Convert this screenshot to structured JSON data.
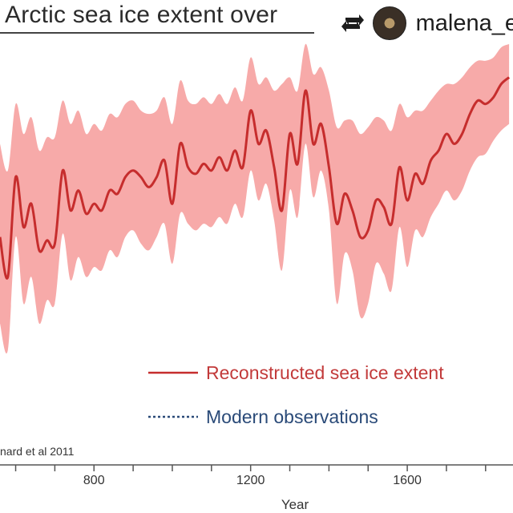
{
  "title": "Arctic sea ice extent over",
  "repost": {
    "icon": "repost-icon",
    "username": "malena_e"
  },
  "credit": "nard et al 2011",
  "colors": {
    "band": "#f7aaa9",
    "line": "#c62d2d",
    "observed": "#2a4a78",
    "text": "#333333"
  },
  "chart_data": {
    "type": "line",
    "title": "Arctic sea ice extent over",
    "xlabel": "Year",
    "ylabel": "",
    "x_ticks": [
      800,
      1200,
      1600
    ],
    "xlim": [
      560,
      1870
    ],
    "ylim": [
      0,
      10
    ],
    "grid": false,
    "legend_placement": "bottom-right",
    "series": [
      {
        "name": "Reconstructed sea ice extent",
        "style": "solid",
        "x": [
          560,
          580,
          600,
          620,
          640,
          660,
          680,
          700,
          720,
          740,
          760,
          780,
          800,
          820,
          840,
          860,
          880,
          900,
          920,
          940,
          960,
          980,
          1000,
          1020,
          1040,
          1060,
          1080,
          1100,
          1120,
          1140,
          1160,
          1180,
          1200,
          1220,
          1240,
          1260,
          1280,
          1300,
          1320,
          1340,
          1360,
          1380,
          1400,
          1420,
          1440,
          1460,
          1480,
          1500,
          1520,
          1540,
          1560,
          1580,
          1600,
          1620,
          1640,
          1660,
          1680,
          1700,
          1720,
          1740,
          1760,
          1780,
          1800,
          1820,
          1840,
          1860
        ],
        "values": [
          4.2,
          3.0,
          6.0,
          4.5,
          5.2,
          3.8,
          4.1,
          4.0,
          6.2,
          5.0,
          5.6,
          4.9,
          5.2,
          5.0,
          5.6,
          5.5,
          6.0,
          6.2,
          6.0,
          5.7,
          6.0,
          6.5,
          5.2,
          7.0,
          6.3,
          6.1,
          6.4,
          6.2,
          6.6,
          6.2,
          6.8,
          6.3,
          8.0,
          7.0,
          7.4,
          6.3,
          5.0,
          7.3,
          6.4,
          8.6,
          7.0,
          7.6,
          6.3,
          4.6,
          5.5,
          5.0,
          4.2,
          4.4,
          5.3,
          5.1,
          4.6,
          6.3,
          5.3,
          6.1,
          5.8,
          6.5,
          6.8,
          7.3,
          7.0,
          7.3,
          7.9,
          8.3,
          8.2,
          8.4,
          8.8,
          9.0
        ],
        "upper": [
          7.0,
          6.2,
          8.2,
          7.3,
          7.8,
          6.8,
          7.2,
          7.2,
          8.3,
          7.6,
          8.0,
          7.3,
          7.6,
          7.4,
          7.9,
          7.8,
          8.2,
          8.3,
          8.0,
          7.9,
          8.0,
          8.4,
          7.6,
          8.9,
          8.3,
          8.2,
          8.4,
          8.2,
          8.5,
          8.2,
          8.7,
          8.3,
          9.6,
          8.8,
          9.0,
          8.6,
          8.8,
          9.0,
          8.6,
          10.0,
          9.1,
          9.3,
          8.6,
          7.5,
          7.7,
          7.7,
          7.3,
          7.5,
          7.8,
          7.7,
          7.4,
          8.2,
          7.8,
          8.0,
          8.0,
          8.3,
          8.6,
          8.8,
          8.8,
          9.0,
          9.3,
          9.5,
          9.5,
          9.6,
          9.9,
          10.0
        ],
        "lower": [
          1.6,
          0.8,
          4.2,
          2.2,
          3.0,
          1.6,
          2.3,
          2.2,
          4.3,
          2.9,
          3.6,
          3.0,
          3.3,
          3.2,
          3.8,
          3.6,
          4.2,
          4.4,
          4.0,
          3.8,
          4.2,
          4.6,
          3.4,
          4.9,
          4.6,
          4.4,
          4.6,
          4.5,
          4.8,
          4.6,
          5.2,
          4.8,
          6.2,
          5.3,
          5.8,
          4.7,
          3.2,
          5.6,
          4.8,
          7.0,
          5.4,
          6.2,
          5.0,
          2.2,
          3.7,
          3.2,
          1.8,
          2.2,
          3.4,
          3.1,
          2.6,
          4.5,
          3.3,
          4.4,
          4.2,
          4.8,
          5.2,
          5.6,
          5.3,
          5.6,
          6.2,
          6.6,
          6.7,
          7.1,
          7.4,
          7.6
        ]
      },
      {
        "name": "Modern observations",
        "style": "dotted",
        "x": [],
        "values": []
      }
    ],
    "legend": [
      "Reconstructed sea ice extent",
      "Modern observations"
    ]
  }
}
